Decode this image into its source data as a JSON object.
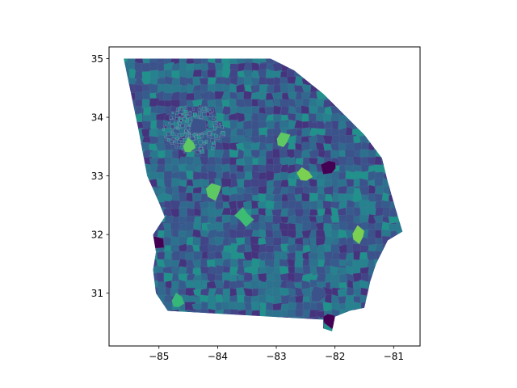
{
  "chart_data": {
    "type": "choropleth map",
    "title": "",
    "xlabel": "",
    "ylabel": "",
    "xlim": [
      -85.85,
      -80.55
    ],
    "ylim": [
      30.1,
      35.2
    ],
    "x_ticks": [
      -85,
      -84,
      -83,
      -82,
      -81
    ],
    "y_ticks": [
      31,
      32,
      33,
      34,
      35
    ],
    "x_tick_labels": [
      "−85",
      "−84",
      "−83",
      "−82",
      "−81"
    ],
    "y_tick_labels": [
      "31",
      "32",
      "33",
      "34",
      "35"
    ],
    "colormap": "viridis",
    "grid": false,
    "legend": "none",
    "outline": [
      [
        -85.6,
        35.0
      ],
      [
        -83.1,
        35.0
      ],
      [
        -82.7,
        34.8
      ],
      [
        -82.2,
        34.4
      ],
      [
        -81.7,
        33.9
      ],
      [
        -81.5,
        33.7
      ],
      [
        -81.2,
        33.3
      ],
      [
        -81.1,
        32.9
      ],
      [
        -81.0,
        32.55
      ],
      [
        -80.85,
        32.05
      ],
      [
        -81.1,
        31.9
      ],
      [
        -81.3,
        31.5
      ],
      [
        -81.4,
        31.2
      ],
      [
        -81.5,
        30.75
      ],
      [
        -81.75,
        30.7
      ],
      [
        -82.0,
        30.6
      ],
      [
        -82.05,
        30.35
      ],
      [
        -82.2,
        30.4
      ],
      [
        -82.2,
        30.55
      ],
      [
        -84.85,
        30.7
      ],
      [
        -85.05,
        31.0
      ],
      [
        -85.1,
        31.4
      ],
      [
        -85.05,
        31.7
      ],
      [
        -85.1,
        32.0
      ],
      [
        -84.9,
        32.3
      ],
      [
        -85.0,
        32.55
      ],
      [
        -85.2,
        33.0
      ],
      [
        -85.35,
        33.8
      ],
      [
        -85.6,
        35.0
      ]
    ],
    "highlighted_regions": [
      {
        "lon": -84.35,
        "lat": 33.85,
        "color": "#3b528b"
      },
      {
        "lon": -82.5,
        "lat": 33.0,
        "color": "#7ad151"
      },
      {
        "lon": -82.1,
        "lat": 33.15,
        "color": "#440154"
      },
      {
        "lon": -82.9,
        "lat": 33.6,
        "color": "#5ec962"
      },
      {
        "lon": -84.05,
        "lat": 32.75,
        "color": "#5ec962"
      },
      {
        "lon": -81.6,
        "lat": 32.0,
        "color": "#7ad151"
      },
      {
        "lon": -85.05,
        "lat": 31.85,
        "color": "#440154"
      },
      {
        "lon": -82.1,
        "lat": 30.55,
        "color": "#440154"
      },
      {
        "lon": -82.3,
        "lat": 31.0,
        "color": "#3b528b"
      },
      {
        "lon": -84.5,
        "lat": 33.5,
        "color": "#5ec962"
      },
      {
        "lon": -81.3,
        "lat": 31.0,
        "color": "#35b779"
      },
      {
        "lon": -83.55,
        "lat": 32.3,
        "color": "#3dbc74"
      },
      {
        "lon": -84.7,
        "lat": 30.85,
        "color": "#35b779"
      }
    ]
  }
}
